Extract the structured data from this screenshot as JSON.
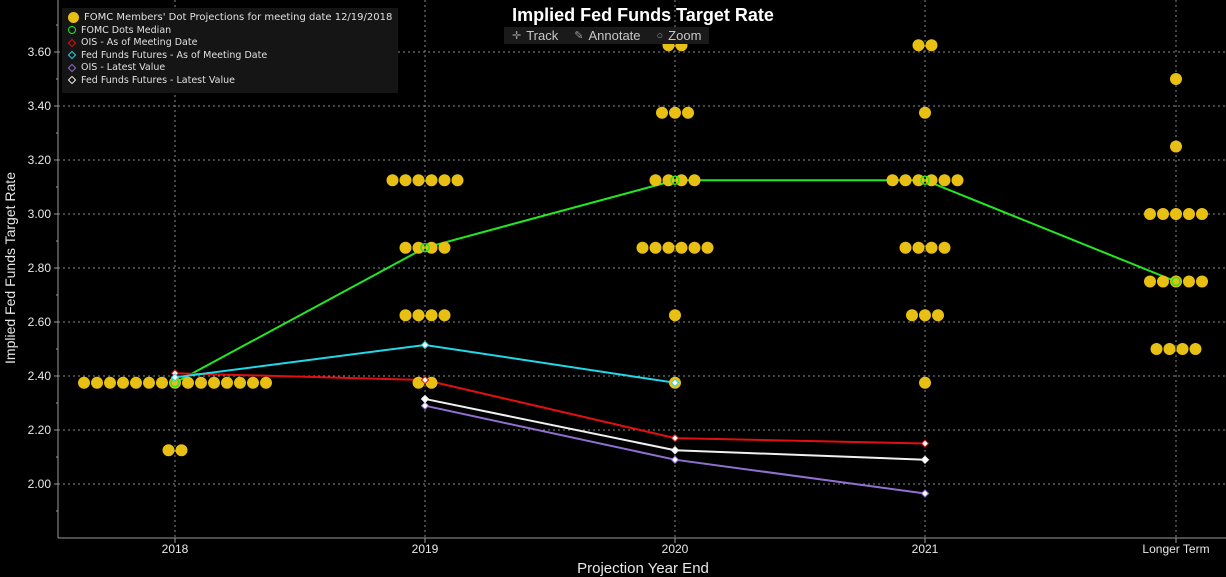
{
  "chart_data": {
    "type": "scatter",
    "title": "Implied Fed Funds Target Rate",
    "xlabel": "Projection Year End",
    "ylabel": "Implied Fed Funds Target Rate",
    "categories": [
      "2018",
      "2019",
      "2020",
      "2021",
      "Longer Term"
    ],
    "ylim": [
      1.8,
      3.7
    ],
    "yticks": [
      "2.00",
      "2.20",
      "2.40",
      "2.60",
      "2.80",
      "3.00",
      "3.20",
      "3.40",
      "3.60"
    ],
    "grid": true,
    "legend_position": "top-left",
    "dots": {
      "name": "FOMC Members' Dot Projections for meeting date 12/19/2018",
      "color": "#e8c014",
      "groups": [
        {
          "category": "2018",
          "levels": [
            {
              "y": 2.375,
              "count": 15
            },
            {
              "y": 2.125,
              "count": 2
            }
          ]
        },
        {
          "category": "2019",
          "levels": [
            {
              "y": 3.125,
              "count": 6
            },
            {
              "y": 2.875,
              "count": 4
            },
            {
              "y": 2.625,
              "count": 4
            },
            {
              "y": 2.375,
              "count": 2
            }
          ]
        },
        {
          "category": "2020",
          "levels": [
            {
              "y": 3.625,
              "count": 2
            },
            {
              "y": 3.375,
              "count": 3
            },
            {
              "y": 3.125,
              "count": 4
            },
            {
              "y": 2.875,
              "count": 6
            },
            {
              "y": 2.625,
              "count": 1
            },
            {
              "y": 2.375,
              "count": 1
            }
          ]
        },
        {
          "category": "2021",
          "levels": [
            {
              "y": 3.625,
              "count": 2
            },
            {
              "y": 3.375,
              "count": 1
            },
            {
              "y": 3.125,
              "count": 6
            },
            {
              "y": 2.875,
              "count": 4
            },
            {
              "y": 2.625,
              "count": 3
            },
            {
              "y": 2.375,
              "count": 1
            }
          ]
        },
        {
          "category": "Longer Term",
          "levels": [
            {
              "y": 3.5,
              "count": 1
            },
            {
              "y": 3.25,
              "count": 1
            },
            {
              "y": 3.0,
              "count": 5
            },
            {
              "y": 2.75,
              "count": 5
            },
            {
              "y": 2.5,
              "count": 4
            }
          ]
        }
      ]
    },
    "series": [
      {
        "name": "FOMC Dots Median",
        "color": "#22e822",
        "points": [
          [
            "2018",
            2.375
          ],
          [
            "2019",
            2.875
          ],
          [
            "2020",
            3.125
          ],
          [
            "2021",
            3.125
          ],
          [
            "Longer Term",
            2.75
          ]
        ]
      },
      {
        "name": "OIS - As of Meeting Date",
        "color": "#e01010",
        "points": [
          [
            "2018",
            2.41
          ],
          [
            "2019",
            2.385
          ],
          [
            "2020",
            2.17
          ],
          [
            "2021",
            2.15
          ]
        ]
      },
      {
        "name": "Fed Funds Futures - As of Meeting Date",
        "color": "#22d8e8",
        "points": [
          [
            "2018",
            2.395
          ],
          [
            "2019",
            2.515
          ],
          [
            "2020",
            2.375
          ]
        ]
      },
      {
        "name": "OIS - Latest Value",
        "color": "#9070d0",
        "points": [
          [
            "2019",
            2.29
          ],
          [
            "2020",
            2.09
          ],
          [
            "2021",
            1.965
          ]
        ]
      },
      {
        "name": "Fed Funds Futures - Latest Value",
        "color": "#f0f0f0",
        "points": [
          [
            "2019",
            2.315
          ],
          [
            "2020",
            2.125
          ],
          [
            "2021",
            2.09
          ]
        ]
      }
    ]
  },
  "toolbar": {
    "track": "Track",
    "annotate": "Annotate",
    "zoom": "Zoom"
  },
  "legend": [
    {
      "label": "FOMC Members' Dot Projections for meeting date 12/19/2018",
      "color": "#e8c014",
      "marker": "dot"
    },
    {
      "label": "FOMC Dots Median",
      "color": "#22e822",
      "marker": "ring"
    },
    {
      "label": "OIS - As of Meeting Date",
      "color": "#e01010",
      "marker": "diamond"
    },
    {
      "label": "Fed Funds Futures - As of Meeting Date",
      "color": "#22d8e8",
      "marker": "diamond"
    },
    {
      "label": "OIS - Latest Value",
      "color": "#9070d0",
      "marker": "diamond"
    },
    {
      "label": "Fed Funds Futures - Latest Value",
      "color": "#f0f0f0",
      "marker": "diamond"
    }
  ]
}
